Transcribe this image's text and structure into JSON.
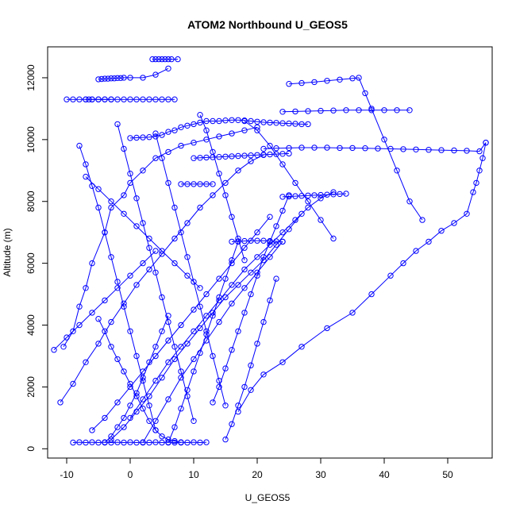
{
  "chart_data": {
    "type": "scatter",
    "title": "ATOM2 Northbound U_GEOS5",
    "xlabel": "U_GEOS5",
    "ylabel": "Altitude (m)",
    "xlim": [
      -13,
      57
    ],
    "ylim": [
      -300,
      13000
    ],
    "x_ticks": [
      -10,
      0,
      10,
      20,
      30,
      40,
      50
    ],
    "y_ticks": [
      0,
      2000,
      4000,
      6000,
      8000,
      10000,
      12000
    ],
    "marker": "open-circle",
    "connected": true,
    "color": "#0000ff",
    "series": [
      {
        "x": [
          -7,
          -6.5,
          -6,
          -5,
          -4,
          -3,
          -2,
          -1,
          0,
          1,
          2,
          3,
          4,
          5,
          6,
          7
        ],
        "y": [
          11300,
          11300,
          11300,
          11300,
          11300,
          11300,
          11300,
          11300,
          11300,
          11300,
          11300,
          11300,
          11300,
          11300,
          11300,
          11300
        ]
      },
      {
        "x": [
          -5,
          -4.5,
          -4,
          -3.5,
          -3,
          -2.5,
          -2,
          -1.5,
          -1,
          0,
          2,
          4,
          6
        ],
        "y": [
          11950,
          11960,
          11970,
          11970,
          11980,
          11980,
          11990,
          11990,
          12000,
          12000,
          12000,
          12100,
          12300
        ]
      },
      {
        "x": [
          3.5,
          4,
          4.5,
          5,
          5.5,
          6,
          6.5,
          7.5
        ],
        "y": [
          12600,
          12600,
          12600,
          12600,
          12600,
          12600,
          12600,
          12600
        ]
      },
      {
        "x": [
          -10,
          -9,
          -8,
          -7,
          -6,
          -5,
          -4,
          -3
        ],
        "y": [
          11300,
          11300,
          11300,
          11300,
          11300,
          11300,
          11300,
          11300
        ]
      },
      {
        "x": [
          0,
          1,
          2,
          3,
          4,
          5,
          6,
          7,
          8,
          9,
          10,
          11,
          12,
          13,
          14,
          15,
          16,
          17,
          18,
          19,
          20,
          21,
          22,
          23,
          24,
          25,
          26,
          27,
          28
        ],
        "y": [
          10050,
          10060,
          10070,
          10080,
          10100,
          10150,
          10250,
          10300,
          10400,
          10450,
          10500,
          10550,
          10600,
          10600,
          10600,
          10620,
          10630,
          10630,
          10620,
          10600,
          10580,
          10560,
          10550,
          10540,
          10530,
          10520,
          10510,
          10500,
          10500
        ]
      },
      {
        "x": [
          21,
          23,
          25,
          27,
          29,
          31,
          33,
          35,
          37,
          39,
          41,
          43,
          45,
          47,
          49,
          51,
          53,
          55,
          56
        ],
        "y": [
          9700,
          9720,
          9730,
          9740,
          9740,
          9740,
          9730,
          9730,
          9720,
          9710,
          9700,
          9690,
          9680,
          9670,
          9660,
          9650,
          9640,
          9620,
          9900
        ]
      },
      {
        "x": [
          56,
          55.5,
          55,
          54.5,
          54,
          53,
          51,
          49,
          47,
          45,
          43,
          41,
          38,
          35,
          31,
          27,
          24,
          21,
          19,
          17
        ],
        "y": [
          9900,
          9400,
          9000,
          8600,
          8300,
          7600,
          7300,
          7050,
          6700,
          6400,
          6000,
          5600,
          5000,
          4400,
          3900,
          3300,
          2800,
          2400,
          1900,
          1200
        ]
      },
      {
        "x": [
          25,
          27,
          29,
          31,
          33,
          35,
          36,
          37,
          38,
          40,
          42,
          44,
          46
        ],
        "y": [
          11800,
          11830,
          11860,
          11900,
          11940,
          11980,
          12000,
          11500,
          11000,
          10000,
          9000,
          8000,
          7400
        ]
      },
      {
        "x": [
          10,
          11,
          12,
          13,
          14,
          15,
          16,
          17,
          18,
          19,
          20,
          21,
          22,
          23,
          24,
          25
        ],
        "y": [
          9400,
          9410,
          9420,
          9430,
          9440,
          9450,
          9460,
          9470,
          9480,
          9490,
          9500,
          9510,
          9520,
          9530,
          9540,
          9550
        ]
      },
      {
        "x": [
          8,
          9,
          10,
          11,
          12,
          13
        ],
        "y": [
          8560,
          8560,
          8560,
          8560,
          8560,
          8560
        ]
      },
      {
        "x": [
          16,
          17,
          18,
          19,
          20,
          21,
          22,
          23,
          24
        ],
        "y": [
          6700,
          6710,
          6720,
          6730,
          6730,
          6730,
          6720,
          6710,
          6700
        ]
      },
      {
        "x": [
          24,
          25,
          26,
          27,
          28,
          29,
          30,
          31,
          32,
          33,
          34
        ],
        "y": [
          8150,
          8160,
          8170,
          8180,
          8190,
          8200,
          8210,
          8220,
          8230,
          8240,
          8250
        ]
      },
      {
        "x": [
          24,
          26,
          28,
          30,
          32,
          34,
          36,
          38,
          40,
          42,
          44
        ],
        "y": [
          10900,
          10910,
          10920,
          10930,
          10940,
          10950,
          10950,
          10950,
          10950,
          10950,
          10950
        ]
      },
      {
        "x": [
          -9,
          -8,
          -7,
          -6,
          -5,
          -4,
          -3,
          -2,
          -1,
          0,
          1,
          2,
          3,
          4,
          5,
          6,
          7,
          8,
          9,
          10,
          11,
          12
        ],
        "y": [
          200,
          210,
          200,
          210,
          200,
          210,
          200,
          210,
          200,
          210,
          200,
          210,
          200,
          210,
          200,
          210,
          200,
          210,
          200,
          210,
          200,
          210
        ]
      },
      {
        "x": [
          -10.5,
          -9,
          -8,
          -7,
          -6,
          -4,
          -3,
          -1,
          0,
          2,
          4,
          6,
          8,
          10,
          12,
          14,
          16,
          18,
          20
        ],
        "y": [
          3300,
          3800,
          4600,
          5200,
          6000,
          7000,
          7800,
          8200,
          8600,
          9000,
          9400,
          9600,
          9800,
          9900,
          10000,
          10100,
          10200,
          10300,
          10400
        ]
      },
      {
        "x": [
          -11,
          -9,
          -7,
          -5,
          -3,
          -1,
          1,
          3,
          5,
          7,
          9,
          11,
          13,
          15,
          17,
          19,
          21
        ],
        "y": [
          1500,
          2100,
          2800,
          3400,
          4100,
          4700,
          5300,
          5800,
          6300,
          6800,
          7300,
          7800,
          8200,
          8600,
          9000,
          9300,
          9500
        ]
      },
      {
        "x": [
          -6,
          -4,
          -2,
          0,
          2,
          4,
          6,
          8,
          10,
          12,
          14,
          16,
          18,
          20,
          22
        ],
        "y": [
          600,
          1000,
          1500,
          2000,
          2500,
          3000,
          3500,
          4000,
          4500,
          5000,
          5500,
          6000,
          6500,
          7000,
          7500
        ]
      },
      {
        "x": [
          -3,
          -1,
          1,
          3,
          5,
          7,
          9,
          11,
          13,
          15,
          17,
          19,
          21,
          23,
          25,
          27
        ],
        "y": [
          300,
          700,
          1200,
          1700,
          2300,
          2900,
          3400,
          3900,
          4400,
          4900,
          5300,
          5700,
          6100,
          6600,
          7100,
          7600
        ]
      },
      {
        "x": [
          0,
          2,
          4,
          6,
          8,
          10,
          12,
          14,
          16,
          18,
          20,
          22,
          24,
          26,
          28,
          30,
          32
        ],
        "y": [
          1000,
          1600,
          2200,
          2800,
          3300,
          3800,
          4300,
          4800,
          5300,
          5800,
          6200,
          6600,
          7000,
          7400,
          7800,
          8100,
          8300
        ]
      },
      {
        "x": [
          2,
          4,
          6,
          8,
          10,
          12,
          14,
          16,
          18,
          20,
          22,
          24
        ],
        "y": [
          200,
          900,
          1600,
          2300,
          2900,
          3500,
          4100,
          4700,
          5200,
          5700,
          6200,
          6700
        ]
      },
      {
        "x": [
          -8,
          -7,
          -6,
          -5,
          -4,
          -3,
          -2,
          -1,
          0,
          1,
          2,
          3,
          4
        ],
        "y": [
          9800,
          9200,
          8500,
          7800,
          7000,
          6200,
          5400,
          4600,
          3800,
          3000,
          2200,
          1400,
          600
        ]
      },
      {
        "x": [
          -2,
          -1,
          0,
          1,
          2,
          3,
          4,
          5,
          6,
          7,
          8,
          9,
          10
        ],
        "y": [
          10500,
          9700,
          8900,
          8100,
          7300,
          6500,
          5700,
          4900,
          4100,
          3300,
          2500,
          1700,
          900
        ]
      },
      {
        "x": [
          4,
          5,
          6,
          7,
          8,
          9,
          10,
          11,
          12,
          13,
          14,
          15
        ],
        "y": [
          10200,
          9400,
          8600,
          7800,
          7000,
          6200,
          5400,
          4600,
          3800,
          3000,
          2200,
          1400
        ]
      },
      {
        "x": [
          18,
          20,
          22,
          24,
          26,
          28,
          30,
          32
        ],
        "y": [
          10600,
          10300,
          9800,
          9200,
          8600,
          8000,
          7400,
          6800
        ]
      },
      {
        "x": [
          -5,
          -4,
          -3,
          -2,
          -1,
          0,
          1,
          2,
          3,
          4,
          5,
          6,
          7,
          8
        ],
        "y": [
          4200,
          3800,
          3300,
          2900,
          2500,
          2100,
          1700,
          1300,
          900,
          600,
          400,
          300,
          250,
          200
        ]
      },
      {
        "x": [
          15,
          16,
          17,
          18,
          19,
          20,
          21,
          22,
          23
        ],
        "y": [
          300,
          800,
          1400,
          2000,
          2700,
          3400,
          4100,
          4800,
          5500
        ]
      },
      {
        "x": [
          13,
          14,
          15,
          16,
          17,
          18,
          19,
          20,
          21,
          22,
          23,
          24,
          25
        ],
        "y": [
          1500,
          2000,
          2600,
          3200,
          3800,
          4400,
          5000,
          5600,
          6200,
          6700,
          7200,
          7700,
          8200
        ]
      },
      {
        "x": [
          11,
          12,
          13,
          14,
          15,
          16,
          17,
          18
        ],
        "y": [
          10800,
          10300,
          9600,
          8900,
          8200,
          7500,
          6800,
          6100
        ]
      },
      {
        "x": [
          -12,
          -10,
          -8,
          -6,
          -4,
          -2,
          0,
          2,
          4
        ],
        "y": [
          3200,
          3600,
          4000,
          4400,
          4800,
          5200,
          5600,
          6000,
          6400
        ]
      },
      {
        "x": [
          -7,
          -5,
          -3,
          -1,
          1,
          3,
          5,
          7,
          9,
          11
        ],
        "y": [
          8800,
          8400,
          8000,
          7600,
          7200,
          6800,
          6400,
          6000,
          5600,
          5200
        ]
      },
      {
        "x": [
          -4,
          -3,
          -2,
          -1,
          0,
          1,
          2,
          3,
          4,
          5,
          6
        ],
        "y": [
          200,
          400,
          700,
          1000,
          1400,
          1800,
          2300,
          2800,
          3300,
          3800,
          4300
        ]
      },
      {
        "x": [
          6,
          7,
          8,
          9,
          10,
          11,
          12,
          13,
          14,
          15,
          16,
          17
        ],
        "y": [
          200,
          700,
          1300,
          1900,
          2500,
          3100,
          3700,
          4300,
          4900,
          5500,
          6100,
          6700
        ]
      }
    ]
  }
}
